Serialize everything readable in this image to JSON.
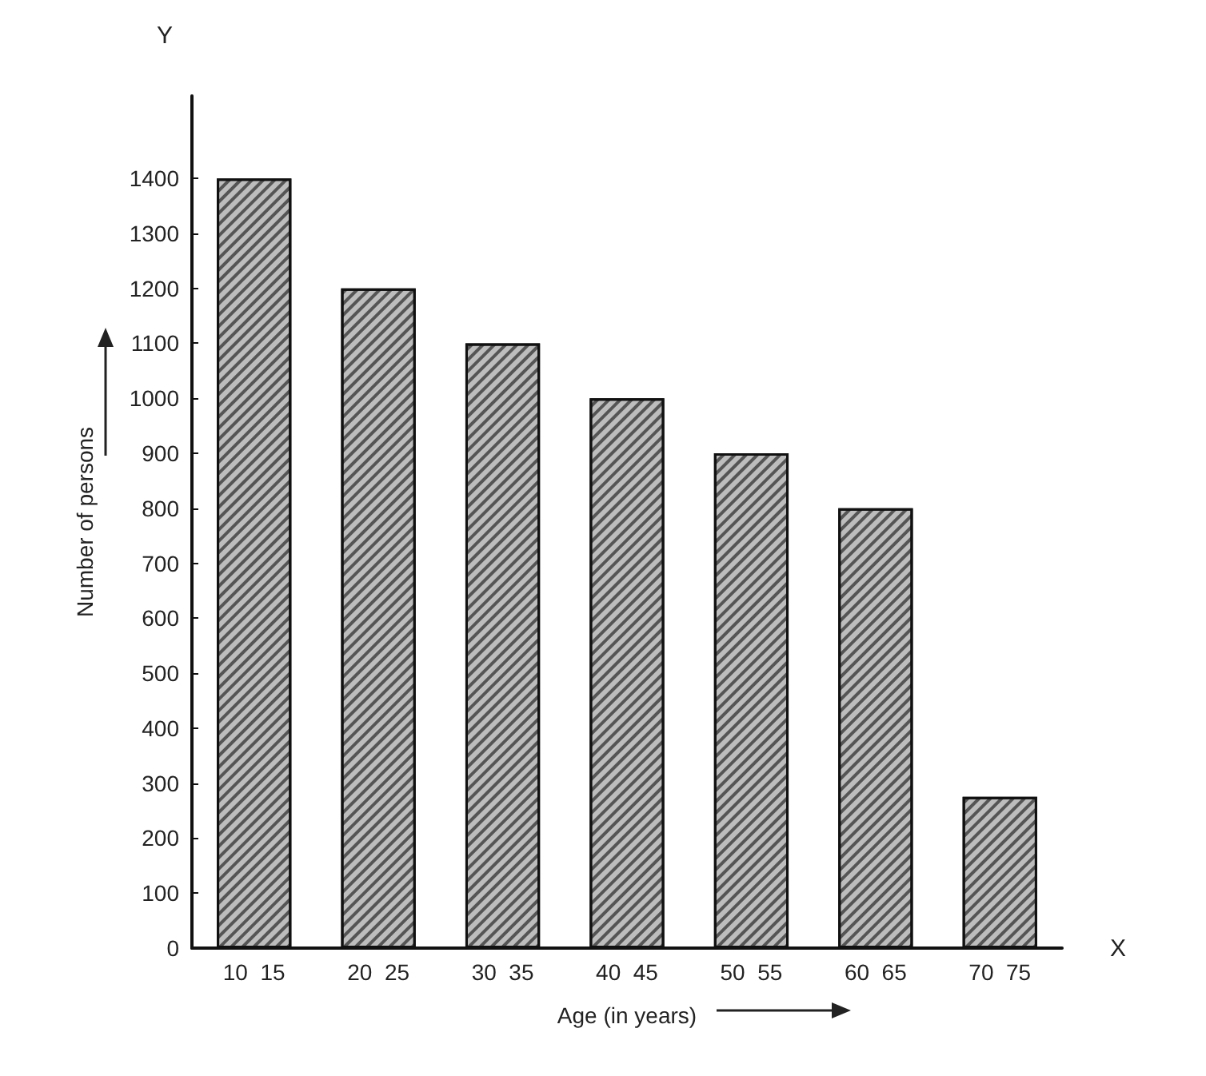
{
  "chart_data": {
    "type": "bar",
    "xlabel": "Age (in years)",
    "ylabel": "Number of persons",
    "categories": [
      "10  15",
      "20  25",
      "30  35",
      "40  45",
      "50  55",
      "60  65",
      "70  75"
    ],
    "values": [
      1400,
      1200,
      1100,
      1000,
      900,
      800,
      275
    ],
    "color": "#bdbdbd",
    "ylim": [
      0,
      1550
    ],
    "yticks": [
      0,
      100,
      200,
      300,
      400,
      500,
      600,
      700,
      800,
      900,
      1000,
      1100,
      1200,
      1300,
      1400
    ],
    "annotations": [
      "Y",
      "X"
    ]
  }
}
